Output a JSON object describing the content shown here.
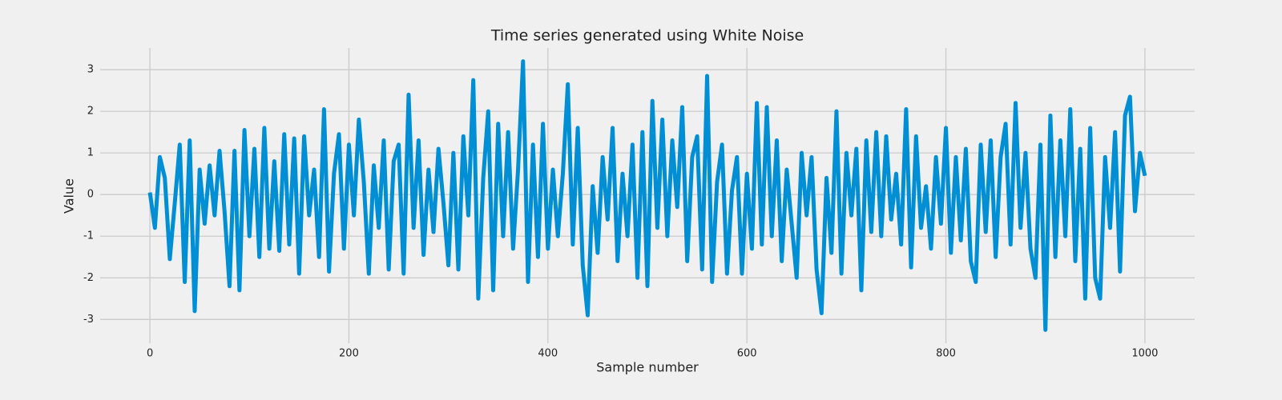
{
  "chart_data": {
    "type": "line",
    "title": "Time series generated using White Noise",
    "xlabel": "Sample number",
    "ylabel": "Value",
    "x": [
      0,
      5,
      10,
      15,
      20,
      25,
      30,
      35,
      40,
      45,
      50,
      55,
      60,
      65,
      70,
      75,
      80,
      85,
      90,
      95,
      100,
      105,
      110,
      115,
      120,
      125,
      130,
      135,
      140,
      145,
      150,
      155,
      160,
      165,
      170,
      175,
      180,
      185,
      190,
      195,
      200,
      205,
      210,
      215,
      220,
      225,
      230,
      235,
      240,
      245,
      250,
      255,
      260,
      265,
      270,
      275,
      280,
      285,
      290,
      295,
      300,
      305,
      310,
      315,
      320,
      325,
      330,
      335,
      340,
      345,
      350,
      355,
      360,
      365,
      370,
      375,
      380,
      385,
      390,
      395,
      400,
      405,
      410,
      415,
      420,
      425,
      430,
      435,
      440,
      445,
      450,
      455,
      460,
      465,
      470,
      475,
      480,
      485,
      490,
      495,
      500,
      505,
      510,
      515,
      520,
      525,
      530,
      535,
      540,
      545,
      550,
      555,
      560,
      565,
      570,
      575,
      580,
      585,
      590,
      595,
      600,
      605,
      610,
      615,
      620,
      625,
      630,
      635,
      640,
      645,
      650,
      655,
      660,
      665,
      670,
      675,
      680,
      685,
      690,
      695,
      700,
      705,
      710,
      715,
      720,
      725,
      730,
      735,
      740,
      745,
      750,
      755,
      760,
      765,
      770,
      775,
      780,
      785,
      790,
      795,
      800,
      805,
      810,
      815,
      820,
      825,
      830,
      835,
      840,
      845,
      850,
      855,
      860,
      865,
      870,
      875,
      880,
      885,
      890,
      895,
      900,
      905,
      910,
      915,
      920,
      925,
      930,
      935,
      940,
      945,
      950,
      955,
      960,
      965,
      970,
      975,
      980,
      985,
      990,
      995,
      1000
    ],
    "series": [
      {
        "name": "Value",
        "color": "#008fd5",
        "values": [
          0.05,
          -0.8,
          0.9,
          0.4,
          -1.55,
          -0.2,
          1.2,
          -2.1,
          1.3,
          -2.8,
          0.6,
          -0.7,
          0.7,
          -0.5,
          1.05,
          -0.4,
          -2.2,
          1.05,
          -2.3,
          1.55,
          -1.0,
          1.1,
          -1.5,
          1.6,
          -1.3,
          0.8,
          -1.35,
          1.45,
          -1.2,
          1.35,
          -1.9,
          1.4,
          -0.5,
          0.6,
          -1.5,
          2.05,
          -1.85,
          0.5,
          1.45,
          -1.3,
          1.2,
          -0.5,
          1.8,
          0.3,
          -1.9,
          0.7,
          -0.8,
          1.3,
          -1.8,
          0.8,
          1.2,
          -1.9,
          2.4,
          -0.8,
          1.3,
          -1.45,
          0.6,
          -0.9,
          1.1,
          -0.2,
          -1.7,
          1.0,
          -1.8,
          1.4,
          -0.5,
          2.75,
          -2.5,
          0.4,
          2.0,
          -2.3,
          1.7,
          -1.0,
          1.5,
          -1.3,
          0.6,
          3.2,
          -2.1,
          1.2,
          -1.5,
          1.7,
          -1.3,
          0.6,
          -1.0,
          0.5,
          2.65,
          -1.2,
          1.6,
          -1.7,
          -2.9,
          0.2,
          -1.4,
          0.9,
          -0.6,
          1.6,
          -1.6,
          0.5,
          -1.0,
          1.2,
          -2.0,
          1.5,
          -2.2,
          2.25,
          -0.8,
          1.8,
          -1.0,
          1.3,
          -0.3,
          2.1,
          -1.6,
          0.9,
          1.4,
          -1.8,
          2.85,
          -2.1,
          0.3,
          1.2,
          -1.9,
          0.1,
          0.9,
          -1.9,
          0.5,
          -1.3,
          2.2,
          -1.2,
          2.1,
          -1.0,
          1.3,
          -1.6,
          0.6,
          -0.7,
          -2.0,
          1.0,
          -0.5,
          0.9,
          -1.8,
          -2.85,
          0.4,
          -1.4,
          2.0,
          -1.9,
          1.0,
          -0.5,
          1.1,
          -2.3,
          1.3,
          -0.9,
          1.5,
          -1.0,
          1.4,
          -0.6,
          0.5,
          -1.2,
          2.05,
          -1.75,
          1.4,
          -0.8,
          0.2,
          -1.3,
          0.9,
          -0.7,
          1.6,
          -1.4,
          0.9,
          -1.1,
          1.1,
          -1.6,
          -2.1,
          1.2,
          -0.9,
          1.3,
          -1.5,
          0.9,
          1.7,
          -1.2,
          2.2,
          -0.8,
          1.0,
          -1.3,
          -2.0,
          1.2,
          -3.25,
          1.9,
          -1.5,
          1.3,
          -1.0,
          2.05,
          -1.6,
          1.1,
          -2.5,
          1.6,
          -2.0,
          -2.5,
          0.9,
          -0.8,
          1.5,
          -1.85,
          1.9,
          2.35,
          -0.4,
          1.0,
          0.45
        ]
      }
    ],
    "xlim": [
      -50,
      1050
    ],
    "ylim": [
      -3.57,
      3.52
    ],
    "xticks": [
      0,
      200,
      400,
      600,
      800,
      1000
    ],
    "yticks": [
      -3,
      -2,
      -1,
      0,
      1,
      2,
      3
    ],
    "grid": true
  }
}
